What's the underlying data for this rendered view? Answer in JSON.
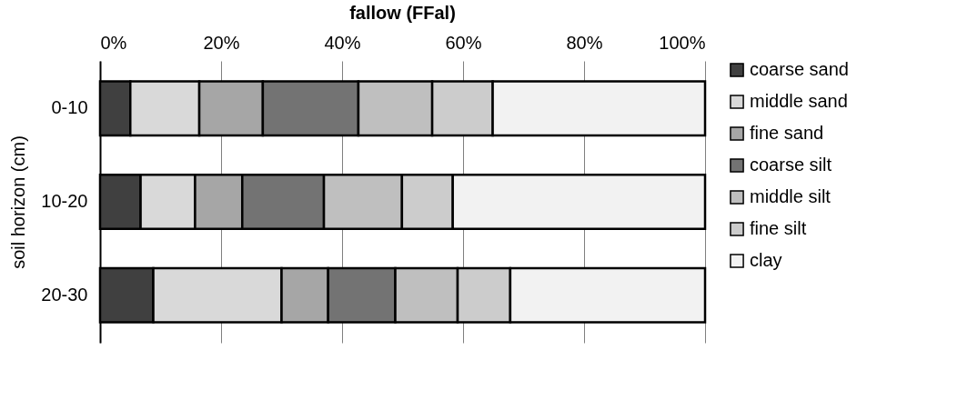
{
  "chart_data": {
    "type": "bar",
    "orientation": "horizontal",
    "stacked": true,
    "title": "fallow (FFal)",
    "ylabel": "soil horizon (cm)",
    "categories": [
      "0-10",
      "10-20",
      "20-30"
    ],
    "series": [
      {
        "name": "coarse sand",
        "color": "#404040",
        "values": [
          5.0,
          6.7,
          8.8
        ]
      },
      {
        "name": "middle sand",
        "color": "#d9d9d9",
        "values": [
          11.4,
          9.0,
          21.2
        ]
      },
      {
        "name": "fine sand",
        "color": "#a6a6a6",
        "values": [
          10.5,
          7.8,
          7.7
        ]
      },
      {
        "name": "coarse silt",
        "color": "#737373",
        "values": [
          15.8,
          13.5,
          11.1
        ]
      },
      {
        "name": "middle silt",
        "color": "#bfbfbf",
        "values": [
          12.2,
          12.9,
          10.3
        ]
      },
      {
        "name": "fine silt",
        "color": "#cccccc",
        "values": [
          10.0,
          8.4,
          8.7
        ]
      },
      {
        "name": "clay",
        "color": "#f2f2f2",
        "values": [
          35.1,
          41.7,
          32.2
        ]
      }
    ],
    "xlim": [
      0,
      100
    ],
    "xticks": [
      {
        "value": 0,
        "label": "0%"
      },
      {
        "value": 20,
        "label": "20%"
      },
      {
        "value": 40,
        "label": "40%"
      },
      {
        "value": 60,
        "label": "60%"
      },
      {
        "value": 80,
        "label": "80%"
      },
      {
        "value": 100,
        "label": "100%"
      }
    ],
    "grid": "x",
    "legend": "right"
  }
}
